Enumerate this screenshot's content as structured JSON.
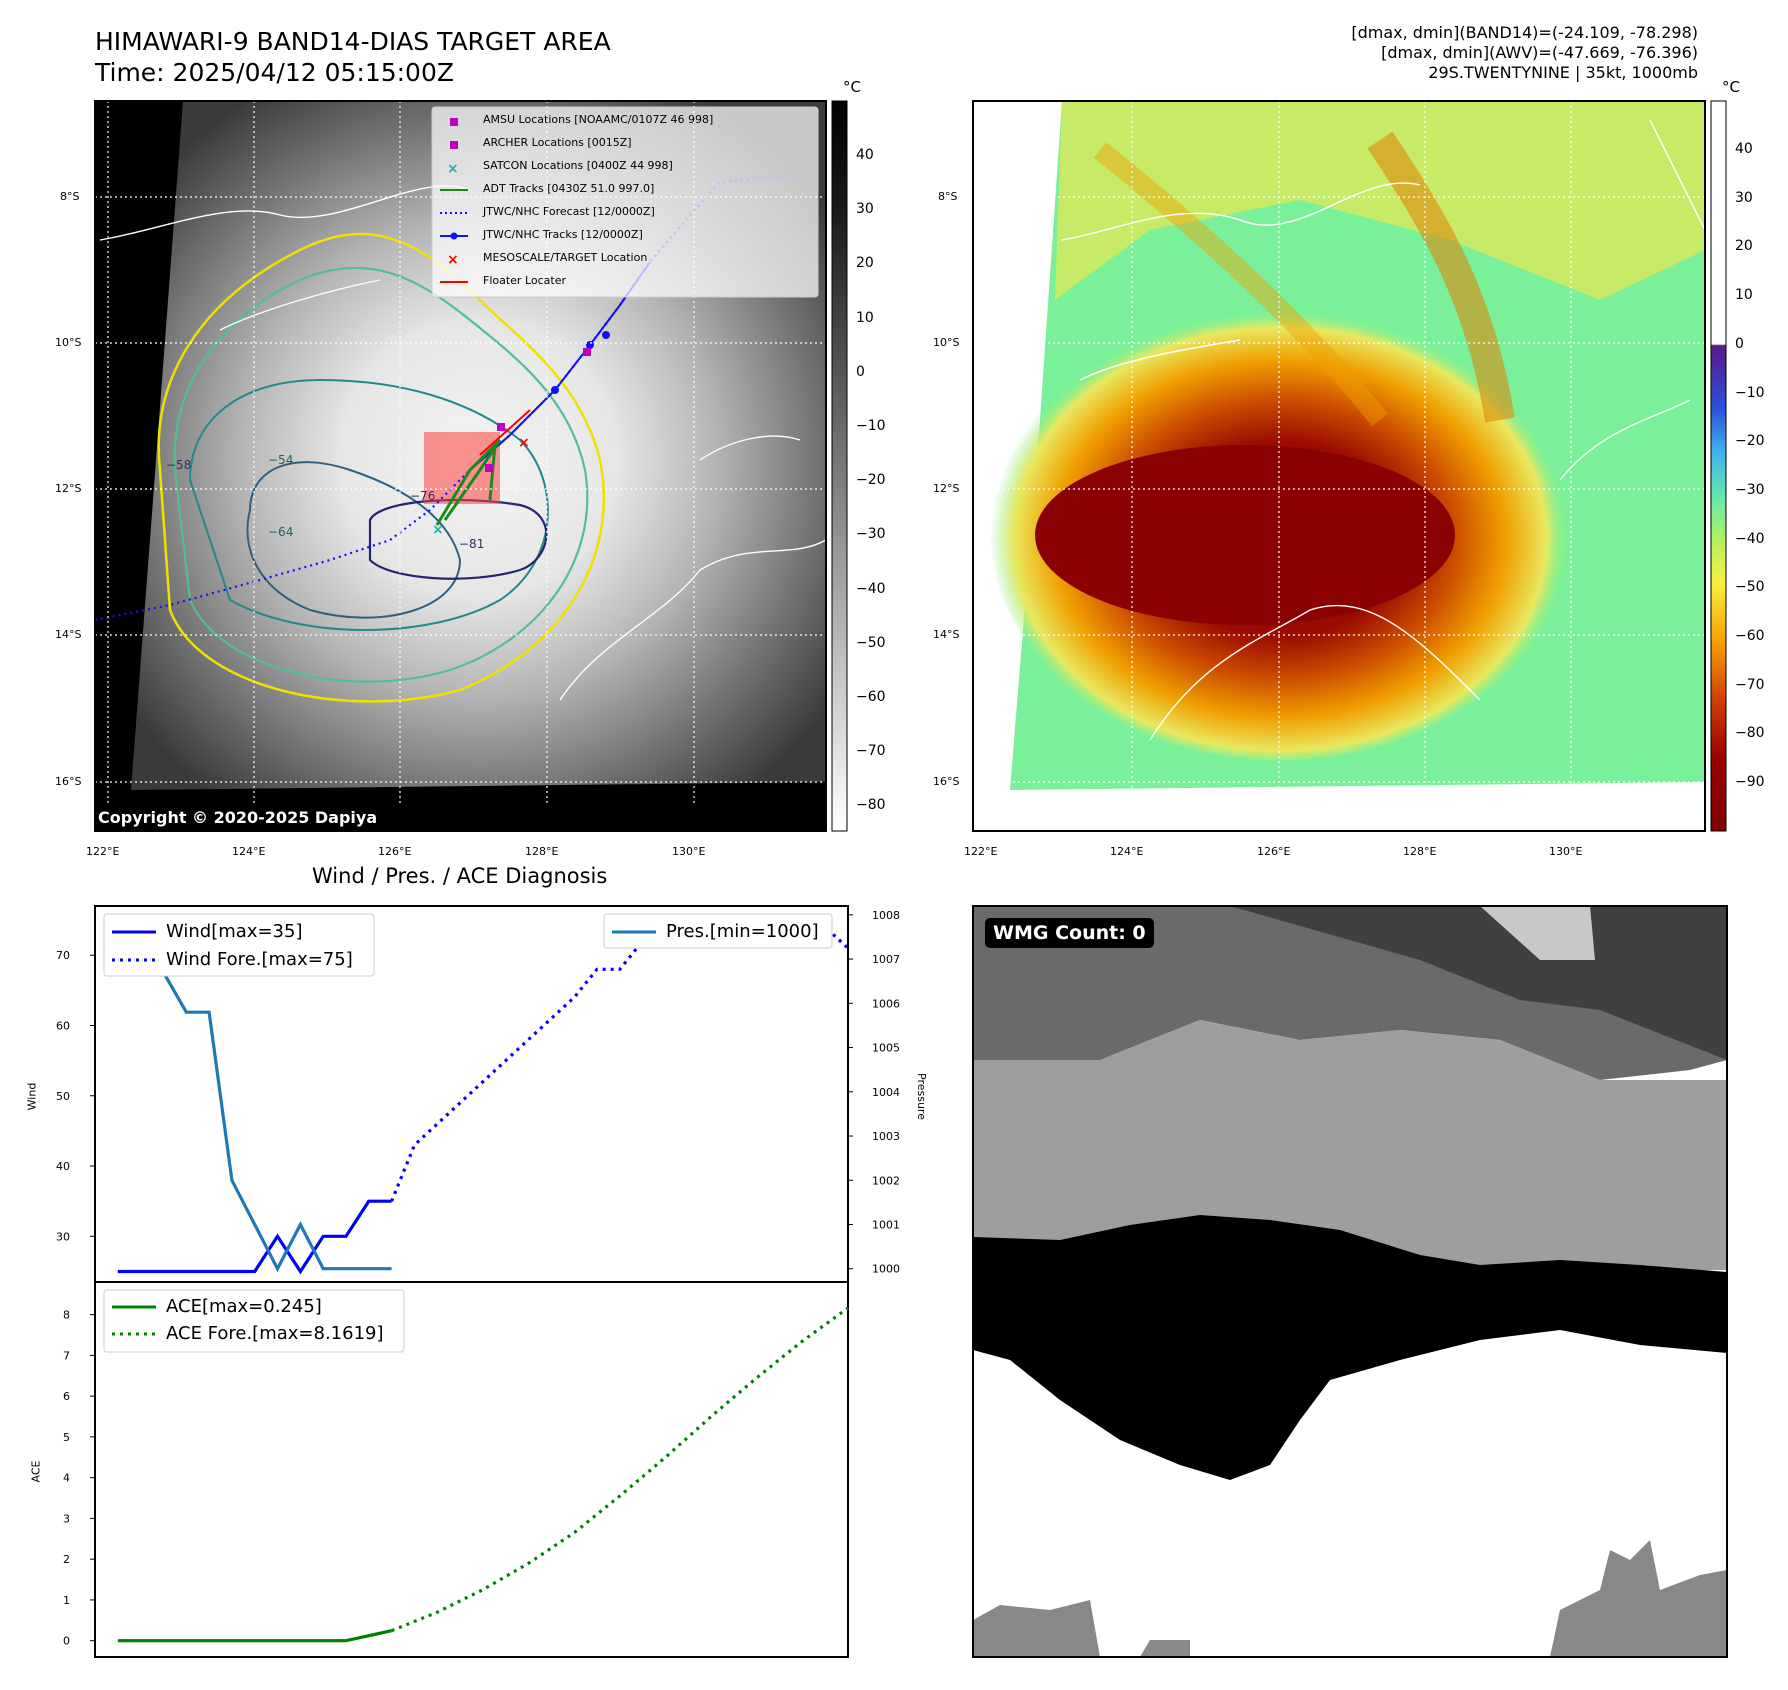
{
  "header": {
    "title": "HIMAWARI-9 BAND14-DIAS TARGET AREA",
    "time": "Time: 2025/04/12 05:15:00Z",
    "info_line1": "[dmax, dmin](BAND14)=(-24.109, -78.298)",
    "info_line2": "[dmax, dmin](AWV)=(-47.669, -76.396)",
    "info_line3": "29S.TWENTYNINE | 35kt, 1000mb"
  },
  "map_left": {
    "lon_ticks": [
      "122°E",
      "124°E",
      "126°E",
      "128°E",
      "130°E"
    ],
    "lat_ticks": [
      "8°S",
      "10°S",
      "12°S",
      "14°S",
      "16°S"
    ],
    "colorbar_unit": "°C",
    "colorbar_ticks": [
      "40",
      "30",
      "20",
      "10",
      "0",
      "−10",
      "−20",
      "−30",
      "−40",
      "−50",
      "−60",
      "−70",
      "−80"
    ],
    "contour_labels": [
      "−54",
      "−64",
      "−76",
      "−81",
      "−58"
    ],
    "copyright": "Copyright © 2020-2025 Dapiya",
    "legend": [
      {
        "label": "AMSU Locations [NOAAMC/0107Z 46 998]",
        "color": "#c000c0",
        "marker": "square"
      },
      {
        "label": "ARCHER Locations [0015Z]",
        "color": "#c000c0",
        "marker": "square"
      },
      {
        "label": "SATCON Locations [0400Z 44 998]",
        "color": "#20b0b0",
        "marker": "x"
      },
      {
        "label": "ADT Tracks [0430Z 51.0 997.0]",
        "color": "#1a8a1a",
        "marker": "line"
      },
      {
        "label": "JTWC/NHC Forecast [12/0000Z]",
        "color": "#1010ff",
        "marker": "dotted"
      },
      {
        "label": "JTWC/NHC Tracks [12/0000Z]",
        "color": "#1010ff",
        "marker": "line-dot"
      },
      {
        "label": "MESOSCALE/TARGET Location",
        "color": "#ff0000",
        "marker": "x"
      },
      {
        "label": "Floater Locater",
        "color": "#ff0000",
        "marker": "line"
      }
    ]
  },
  "map_right": {
    "lon_ticks": [
      "122°E",
      "124°E",
      "126°E",
      "128°E",
      "130°E"
    ],
    "lat_ticks": [
      "8°S",
      "10°S",
      "12°S",
      "14°S",
      "16°S"
    ],
    "colorbar_unit": "°C",
    "colorbar_ticks": [
      "40",
      "30",
      "20",
      "10",
      "0",
      "−10",
      "−20",
      "−30",
      "−40",
      "−50",
      "−60",
      "−70",
      "−80",
      "−90"
    ]
  },
  "diagnosis": {
    "title": "Wind / Pres. / ACE Diagnosis",
    "wind_ylabel": "Wind",
    "pres_ylabel": "Pressure",
    "ace_ylabel": "ACE",
    "legend_wind": "Wind[max=35]",
    "legend_wind_fore": "Wind Fore.[max=75]",
    "legend_pres": "Pres.[min=1000]",
    "legend_ace": "ACE[max=0.245]",
    "legend_ace_fore": "ACE Fore.[max=8.1619]"
  },
  "wmg": {
    "badge": "WMG Count: 0"
  },
  "chart_data": [
    {
      "type": "line",
      "title": "Wind / Pres. / ACE Diagnosis",
      "ylabel": "Wind",
      "ylim": [
        23.5,
        77
      ],
      "xlim": [
        0,
        33
      ],
      "series": [
        {
          "name": "Wind[max=35]",
          "style": "solid",
          "color": "#0000ff",
          "x": [
            1,
            2,
            3,
            4,
            5,
            6,
            7,
            8,
            9,
            10,
            11,
            12,
            13
          ],
          "values": [
            25,
            25,
            25,
            25,
            25,
            25,
            25,
            30,
            25,
            30,
            30,
            35,
            35
          ]
        },
        {
          "name": "Wind Fore.[max=75]",
          "style": "dotted",
          "color": "#0000ff",
          "x": [
            13,
            14,
            15,
            16,
            17,
            18,
            19,
            20,
            21,
            22,
            23,
            24,
            25,
            26,
            27,
            28,
            29,
            30,
            31,
            32,
            33
          ],
          "values": [
            35,
            43,
            46,
            49,
            52,
            55,
            58,
            61,
            64,
            68,
            68,
            72,
            75,
            75,
            75,
            75,
            75,
            74,
            74,
            74,
            71
          ]
        }
      ]
    },
    {
      "type": "line",
      "ylabel": "Pressure",
      "ylim": [
        999.7,
        1008.2
      ],
      "xlim": [
        0,
        33
      ],
      "series": [
        {
          "name": "Pres.[min=1000]",
          "style": "solid",
          "color": "#1f77b4",
          "x": [
            1,
            2,
            3,
            4,
            5,
            6,
            7,
            8,
            9,
            10,
            11,
            12,
            13
          ],
          "values": [
            1008,
            1006.7,
            1006.7,
            1005.8,
            1005.8,
            1002,
            1001,
            1000,
            1001,
            1000,
            1000,
            1000,
            1000
          ]
        }
      ]
    },
    {
      "type": "line",
      "ylabel": "ACE",
      "ylim": [
        -0.4,
        8.8
      ],
      "xlim": [
        0,
        33
      ],
      "series": [
        {
          "name": "ACE[max=0.245]",
          "style": "solid",
          "color": "#008000",
          "x": [
            1,
            11,
            13
          ],
          "values": [
            0,
            0,
            0.245
          ]
        },
        {
          "name": "ACE Fore.[max=8.1619]",
          "style": "dotted",
          "color": "#008000",
          "x": [
            13,
            15,
            17,
            19,
            21,
            23,
            25,
            27,
            29,
            31,
            33
          ],
          "values": [
            0.245,
            0.7,
            1.25,
            1.9,
            2.65,
            3.55,
            4.5,
            5.5,
            6.45,
            7.35,
            8.1619
          ]
        }
      ]
    }
  ]
}
